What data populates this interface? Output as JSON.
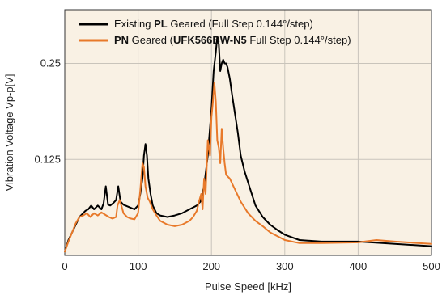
{
  "chart_data": {
    "type": "line",
    "title": "",
    "xlabel": "Pulse Speed [kHz]",
    "ylabel": "Vibration Voltage Vp-p[V]",
    "xlim": [
      0,
      500
    ],
    "ylim": [
      0,
      0.32
    ],
    "x_ticks": [
      "0",
      "100",
      "200",
      "300",
      "400",
      "500"
    ],
    "y_ticks": [
      "0.125",
      "0.25"
    ],
    "grid": true,
    "legend_position": "top-left",
    "colors": {
      "background": "#f9f1e4",
      "grid": "#c9c4bb"
    },
    "series": [
      {
        "legend_parts": [
          {
            "text": "Existing ",
            "bold": false
          },
          {
            "text": "PL",
            "bold": true
          },
          {
            "text": " Geared (Full Step 0.144°/step)",
            "bold": false
          }
        ],
        "color": "#000000",
        "x": [
          0,
          5,
          10,
          15,
          20,
          25,
          28,
          32,
          36,
          40,
          45,
          50,
          53,
          56,
          59,
          62,
          66,
          70,
          73,
          76,
          80,
          85,
          90,
          95,
          100,
          103,
          106,
          108,
          110,
          112,
          114,
          117,
          120,
          125,
          130,
          140,
          150,
          160,
          170,
          180,
          185,
          190,
          195,
          200,
          203,
          206,
          208,
          210,
          212,
          214,
          216,
          218,
          220,
          222,
          225,
          228,
          232,
          236,
          240,
          245,
          250,
          255,
          260,
          270,
          280,
          290,
          300,
          320,
          350,
          400,
          450,
          500
        ],
        "y": [
          0.005,
          0.02,
          0.03,
          0.04,
          0.05,
          0.055,
          0.058,
          0.06,
          0.065,
          0.06,
          0.065,
          0.06,
          0.068,
          0.09,
          0.066,
          0.065,
          0.068,
          0.072,
          0.09,
          0.07,
          0.066,
          0.064,
          0.062,
          0.06,
          0.065,
          0.08,
          0.1,
          0.13,
          0.145,
          0.13,
          0.1,
          0.08,
          0.065,
          0.055,
          0.052,
          0.05,
          0.052,
          0.055,
          0.06,
          0.065,
          0.07,
          0.09,
          0.13,
          0.19,
          0.24,
          0.265,
          0.285,
          0.275,
          0.24,
          0.25,
          0.255,
          0.25,
          0.25,
          0.245,
          0.23,
          0.21,
          0.185,
          0.16,
          0.13,
          0.11,
          0.095,
          0.08,
          0.065,
          0.05,
          0.04,
          0.033,
          0.027,
          0.02,
          0.018,
          0.018,
          0.015,
          0.012
        ]
      },
      {
        "legend_parts": [
          {
            "text": "PN",
            "bold": true
          },
          {
            "text": " Geared (",
            "bold": false
          },
          {
            "text": "UFK566BW-N5",
            "bold": true
          },
          {
            "text": " Full Step 0.144°/step)",
            "bold": false
          }
        ],
        "color": "#e8792a",
        "x": [
          0,
          5,
          10,
          15,
          20,
          25,
          30,
          35,
          40,
          45,
          50,
          55,
          60,
          65,
          70,
          72,
          75,
          78,
          80,
          85,
          90,
          95,
          100,
          103,
          106,
          108,
          110,
          113,
          116,
          120,
          125,
          130,
          140,
          150,
          160,
          170,
          175,
          180,
          183,
          186,
          188,
          190,
          192,
          195,
          198,
          200,
          202,
          204,
          206,
          208,
          210,
          212,
          214,
          216,
          218,
          220,
          225,
          230,
          235,
          240,
          250,
          260,
          270,
          280,
          290,
          300,
          320,
          350,
          400,
          425,
          450,
          500
        ],
        "y": [
          0.005,
          0.018,
          0.03,
          0.042,
          0.05,
          0.052,
          0.055,
          0.05,
          0.055,
          0.052,
          0.056,
          0.053,
          0.05,
          0.048,
          0.05,
          0.065,
          0.072,
          0.062,
          0.055,
          0.05,
          0.048,
          0.047,
          0.055,
          0.085,
          0.12,
          0.115,
          0.09,
          0.075,
          0.07,
          0.06,
          0.052,
          0.045,
          0.04,
          0.038,
          0.04,
          0.045,
          0.05,
          0.058,
          0.07,
          0.08,
          0.06,
          0.1,
          0.08,
          0.15,
          0.13,
          0.18,
          0.2,
          0.225,
          0.2,
          0.15,
          0.14,
          0.12,
          0.165,
          0.14,
          0.12,
          0.105,
          0.1,
          0.09,
          0.08,
          0.07,
          0.055,
          0.045,
          0.038,
          0.03,
          0.025,
          0.02,
          0.016,
          0.016,
          0.017,
          0.02,
          0.018,
          0.015
        ]
      }
    ]
  }
}
